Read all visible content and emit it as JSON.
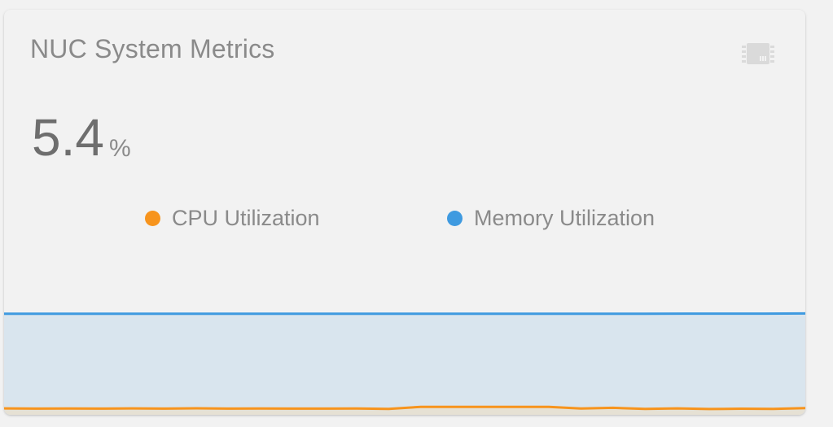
{
  "card": {
    "title": "NUC System Metrics",
    "icon": "chip-icon",
    "value": "5.4",
    "unit": "%"
  },
  "legend": [
    {
      "label": "CPU Utilization",
      "color": "#f7941d"
    },
    {
      "label": "Memory Utilization",
      "color": "#3f9ae0"
    }
  ],
  "colors": {
    "cpu_line": "#f7941d",
    "cpu_fill": "#e6e1d4",
    "mem_line": "#3f9ae0",
    "mem_fill": "#d9e5ee",
    "title_text": "#8a8a8a",
    "value_text": "#6e6e6e"
  },
  "chart_data": {
    "type": "area",
    "ylim": [
      0,
      100
    ],
    "series": [
      {
        "name": "Memory Utilization",
        "values": [
          91.3,
          91.3,
          91.3,
          91.3,
          91.3,
          91.3,
          91.3,
          91.3,
          91.3,
          91.3,
          91.3,
          91.3,
          91.3,
          91.3,
          91.3,
          91.3,
          91.4,
          91.5,
          91.5,
          91.5,
          91.6
        ]
      },
      {
        "name": "CPU Utilization",
        "values": [
          5.8,
          5.6,
          5.7,
          5.6,
          5.8,
          5.6,
          5.9,
          5.6,
          5.7,
          5.6,
          5.6,
          5.7,
          5.3,
          7.2,
          7.2,
          7.2,
          7.2,
          7.1,
          5.7,
          6.3,
          5.4,
          5.8,
          5.2,
          5.5,
          5.4,
          6.0
        ]
      }
    ]
  }
}
